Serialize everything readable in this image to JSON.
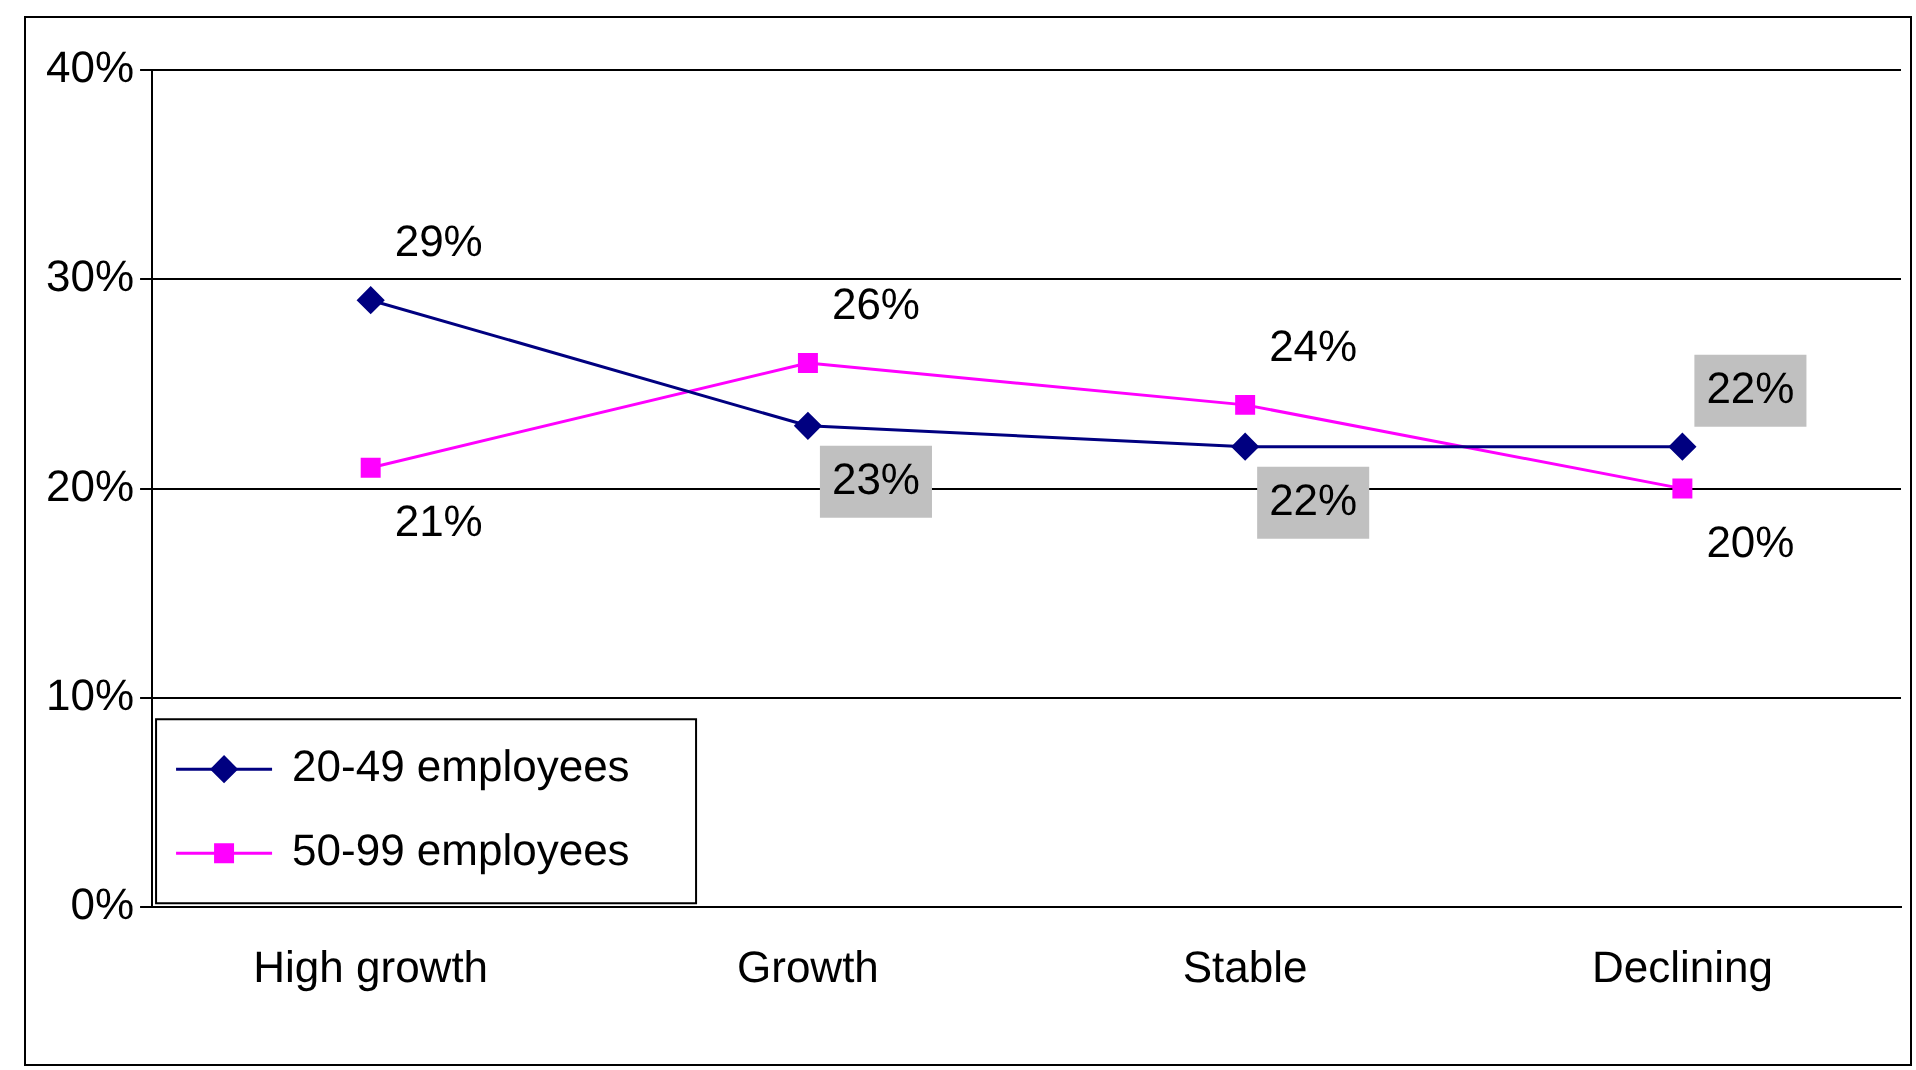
{
  "chart_data": {
    "type": "line",
    "categories": [
      "High growth",
      "Growth",
      "Stable",
      "Declining"
    ],
    "series": [
      {
        "name": "20-49 employees",
        "color": "#000080",
        "marker": "diamond",
        "values": [
          29,
          23,
          22,
          22
        ],
        "value_labels": [
          "29%",
          "23%",
          "22%",
          "22%"
        ]
      },
      {
        "name": "50-99 employees",
        "color": "#ff00ff",
        "marker": "square",
        "values": [
          21,
          26,
          24,
          20
        ],
        "value_labels": [
          "21%",
          "26%",
          "24%",
          "20%"
        ]
      }
    ],
    "ylim": [
      0,
      40
    ],
    "yticks": [
      {
        "value": 0,
        "label": "0%"
      },
      {
        "value": 10,
        "label": "10%"
      },
      {
        "value": 20,
        "label": "20%"
      },
      {
        "value": 30,
        "label": "30%"
      },
      {
        "value": 40,
        "label": "40%"
      }
    ],
    "grid": "y",
    "legend": "bottom left"
  }
}
